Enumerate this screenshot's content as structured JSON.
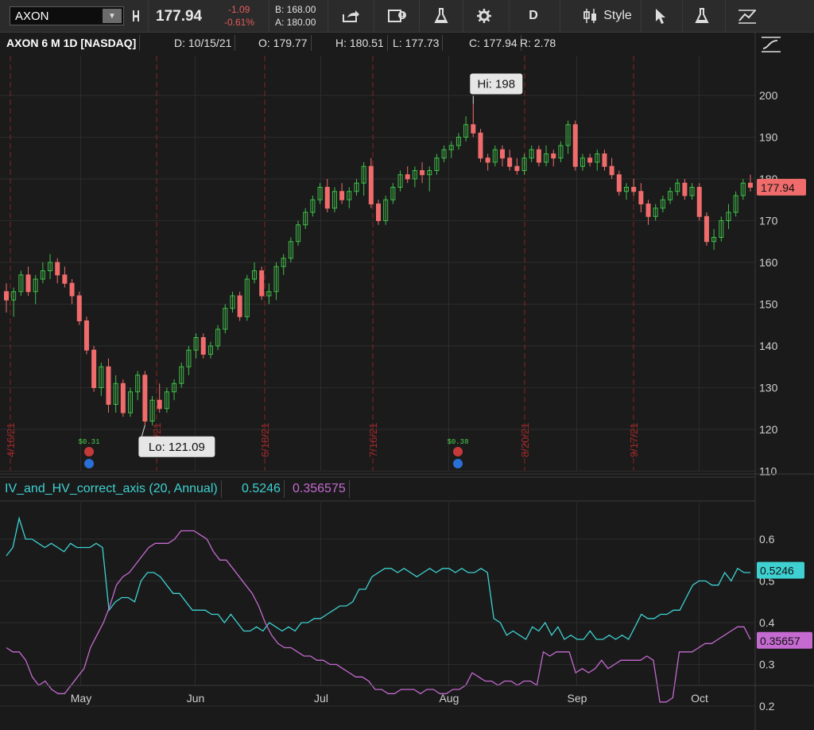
{
  "toolbar": {
    "symbol": "AXON",
    "last_price": "177.94",
    "change_abs": "-1.09",
    "change_pct": "-0.61%",
    "bid": "B: 168.00",
    "ask": "A: 180.00",
    "timeframe_label": "D",
    "style_label": "Style"
  },
  "header": {
    "title": "AXON 6 M 1D [NASDAQ]",
    "date": "D: 10/15/21",
    "open": "O: 179.77",
    "high": "H: 180.51",
    "low": "L: 177.73",
    "close": "C: 177.94",
    "range": "R: 2.78"
  },
  "price_axis": {
    "ticks": [
      "200",
      "190",
      "180",
      "170",
      "160",
      "150",
      "140",
      "130",
      "120",
      "110"
    ],
    "current_label": "177.94"
  },
  "annotations": {
    "high_label": "Hi: 198",
    "low_label": "Lo: 121.09",
    "dividend_1": "$0.31",
    "dividend_2": "$0.38"
  },
  "expiry_lines": [
    "4/16/21",
    "5/21/21",
    "6/18/21",
    "7/16/21",
    "8/20/21",
    "9/17/21"
  ],
  "study": {
    "name": "IV_and_HV_correct_axis (20, Annual)",
    "iv_value": "0.5246",
    "hv_value": "0.356575",
    "iv_axis_label": "0.5246",
    "hv_axis_label": "0.35657",
    "ticks": [
      "0.6",
      "0.5",
      "0.4",
      "0.3",
      "0.2"
    ]
  },
  "time_axis": {
    "months": [
      "May",
      "Jun",
      "Jul",
      "Aug",
      "Sep",
      "Oct"
    ]
  },
  "colors": {
    "up": "#3fbf4a",
    "down": "#f06c6c",
    "iv": "#3fd1d1",
    "hv": "#c46ad0",
    "grid": "#2c2c2c",
    "expiry": "#8a2222"
  },
  "chart_data": [
    {
      "type": "candlestick",
      "title": "AXON 6 M 1D [NASDAQ]",
      "ylim": [
        110,
        205
      ],
      "candles": [
        [
          153,
          155,
          148,
          151
        ],
        [
          151,
          154,
          147,
          153
        ],
        [
          153,
          158,
          152,
          157
        ],
        [
          157,
          159,
          152,
          153
        ],
        [
          153,
          157,
          150,
          156
        ],
        [
          156,
          160,
          155,
          158
        ],
        [
          158,
          162,
          156,
          160
        ],
        [
          160,
          161,
          155,
          157
        ],
        [
          157,
          159,
          154,
          155
        ],
        [
          155,
          156,
          150,
          152
        ],
        [
          152,
          153,
          145,
          146
        ],
        [
          146,
          147,
          138,
          139
        ],
        [
          139,
          140,
          129,
          130
        ],
        [
          130,
          136,
          128,
          135
        ],
        [
          135,
          137,
          124,
          126
        ],
        [
          126,
          133,
          124,
          131
        ],
        [
          131,
          132,
          123,
          124
        ],
        [
          124,
          130,
          123,
          129
        ],
        [
          129,
          134,
          127,
          133
        ],
        [
          133,
          134,
          121,
          122
        ],
        [
          122,
          128,
          121,
          127
        ],
        [
          127,
          131,
          124,
          125
        ],
        [
          125,
          130,
          124,
          129
        ],
        [
          129,
          132,
          127,
          131
        ],
        [
          131,
          136,
          130,
          135
        ],
        [
          135,
          140,
          133,
          139
        ],
        [
          139,
          143,
          137,
          142
        ],
        [
          142,
          143,
          137,
          138
        ],
        [
          138,
          141,
          137,
          140
        ],
        [
          140,
          145,
          139,
          144
        ],
        [
          144,
          150,
          143,
          149
        ],
        [
          149,
          153,
          148,
          152
        ],
        [
          152,
          153,
          146,
          147
        ],
        [
          147,
          157,
          146,
          156
        ],
        [
          156,
          160,
          155,
          158
        ],
        [
          158,
          159,
          151,
          152
        ],
        [
          152,
          155,
          150,
          153
        ],
        [
          153,
          160,
          151,
          159
        ],
        [
          159,
          162,
          157,
          161
        ],
        [
          161,
          166,
          160,
          165
        ],
        [
          165,
          170,
          164,
          169
        ],
        [
          169,
          173,
          168,
          172
        ],
        [
          172,
          176,
          171,
          175
        ],
        [
          175,
          179,
          174,
          178
        ],
        [
          178,
          180,
          172,
          173
        ],
        [
          173,
          178,
          172,
          177
        ],
        [
          177,
          179,
          174,
          175
        ],
        [
          175,
          178,
          173,
          177
        ],
        [
          177,
          180,
          176,
          179
        ],
        [
          179,
          184,
          176,
          183
        ],
        [
          183,
          185,
          173,
          174
        ],
        [
          174,
          175,
          169,
          170
        ],
        [
          170,
          176,
          169,
          175
        ],
        [
          175,
          179,
          174,
          178
        ],
        [
          178,
          182,
          177,
          181
        ],
        [
          181,
          183,
          179,
          180
        ],
        [
          180,
          183,
          178,
          182
        ],
        [
          182,
          184,
          179,
          181
        ],
        [
          181,
          183,
          177,
          182
        ],
        [
          182,
          186,
          181,
          185
        ],
        [
          185,
          188,
          184,
          187
        ],
        [
          187,
          189,
          185,
          188
        ],
        [
          188,
          191,
          187,
          190
        ],
        [
          190,
          195,
          189,
          193
        ],
        [
          193,
          198,
          190,
          191
        ],
        [
          191,
          192,
          184,
          185
        ],
        [
          185,
          186,
          182,
          184
        ],
        [
          184,
          188,
          183,
          187
        ],
        [
          187,
          188,
          183,
          185
        ],
        [
          185,
          187,
          182,
          183
        ],
        [
          183,
          185,
          181,
          182
        ],
        [
          182,
          186,
          181,
          185
        ],
        [
          185,
          188,
          184,
          187
        ],
        [
          187,
          188,
          183,
          184
        ],
        [
          184,
          188,
          183,
          186
        ],
        [
          186,
          187,
          183,
          185
        ],
        [
          185,
          189,
          184,
          188
        ],
        [
          188,
          194,
          186,
          193
        ],
        [
          193,
          194,
          182,
          183
        ],
        [
          183,
          186,
          182,
          185
        ],
        [
          185,
          186,
          183,
          184
        ],
        [
          184,
          187,
          182,
          186
        ],
        [
          186,
          187,
          182,
          183
        ],
        [
          183,
          185,
          180,
          181
        ],
        [
          181,
          182,
          176,
          177
        ],
        [
          177,
          179,
          175,
          178
        ],
        [
          178,
          180,
          176,
          177
        ],
        [
          177,
          179,
          172,
          174
        ],
        [
          174,
          175,
          169,
          171
        ],
        [
          171,
          174,
          170,
          173
        ],
        [
          173,
          176,
          172,
          175
        ],
        [
          175,
          178,
          174,
          177
        ],
        [
          177,
          180,
          176,
          179
        ],
        [
          179,
          180,
          175,
          176
        ],
        [
          176,
          179,
          175,
          178
        ],
        [
          178,
          179,
          170,
          171
        ],
        [
          171,
          172,
          164,
          165
        ],
        [
          165,
          168,
          163,
          166
        ],
        [
          166,
          171,
          165,
          170
        ],
        [
          170,
          174,
          168,
          172
        ],
        [
          172,
          177,
          171,
          176
        ],
        [
          176,
          180,
          175,
          179
        ],
        [
          179,
          181,
          177,
          178
        ]
      ]
    },
    {
      "type": "line",
      "title": "IV_and_HV_correct_axis (20, Annual)",
      "ylim": [
        0.2,
        0.65
      ],
      "series": [
        {
          "name": "IV",
          "values": [
            0.56,
            0.58,
            0.65,
            0.6,
            0.6,
            0.59,
            0.58,
            0.59,
            0.58,
            0.57,
            0.59,
            0.58,
            0.58,
            0.58,
            0.59,
            0.58,
            0.43,
            0.45,
            0.46,
            0.46,
            0.45,
            0.5,
            0.52,
            0.52,
            0.51,
            0.49,
            0.47,
            0.47,
            0.45,
            0.43,
            0.43,
            0.43,
            0.42,
            0.42,
            0.4,
            0.42,
            0.4,
            0.38,
            0.38,
            0.39,
            0.38,
            0.4,
            0.39,
            0.38,
            0.39,
            0.38,
            0.4,
            0.4,
            0.41,
            0.41,
            0.42,
            0.43,
            0.44,
            0.44,
            0.45,
            0.48,
            0.48,
            0.51,
            0.52,
            0.53,
            0.53,
            0.52,
            0.53,
            0.52,
            0.51,
            0.52,
            0.53,
            0.52,
            0.53,
            0.53,
            0.52,
            0.53,
            0.52,
            0.52,
            0.53,
            0.52,
            0.41,
            0.4,
            0.37,
            0.38,
            0.37,
            0.36,
            0.39,
            0.38,
            0.4,
            0.37,
            0.39,
            0.36,
            0.37,
            0.36,
            0.36,
            0.38,
            0.36,
            0.36,
            0.37,
            0.36,
            0.37,
            0.36,
            0.39,
            0.42,
            0.41,
            0.41,
            0.42,
            0.42,
            0.43,
            0.43,
            0.46,
            0.49,
            0.5,
            0.5,
            0.49,
            0.49,
            0.52,
            0.5,
            0.53,
            0.52,
            0.52
          ]
        },
        {
          "name": "HV",
          "values": [
            0.34,
            0.33,
            0.33,
            0.31,
            0.27,
            0.25,
            0.26,
            0.24,
            0.23,
            0.23,
            0.25,
            0.27,
            0.29,
            0.34,
            0.37,
            0.4,
            0.44,
            0.49,
            0.51,
            0.52,
            0.54,
            0.56,
            0.58,
            0.59,
            0.59,
            0.59,
            0.6,
            0.62,
            0.62,
            0.62,
            0.61,
            0.6,
            0.57,
            0.55,
            0.55,
            0.53,
            0.51,
            0.49,
            0.47,
            0.44,
            0.4,
            0.37,
            0.35,
            0.34,
            0.34,
            0.33,
            0.32,
            0.32,
            0.31,
            0.31,
            0.3,
            0.3,
            0.29,
            0.28,
            0.27,
            0.27,
            0.26,
            0.24,
            0.24,
            0.23,
            0.23,
            0.24,
            0.24,
            0.24,
            0.23,
            0.24,
            0.24,
            0.23,
            0.23,
            0.24,
            0.24,
            0.25,
            0.28,
            0.27,
            0.26,
            0.26,
            0.25,
            0.26,
            0.26,
            0.25,
            0.26,
            0.26,
            0.25,
            0.33,
            0.32,
            0.33,
            0.33,
            0.33,
            0.28,
            0.29,
            0.28,
            0.29,
            0.31,
            0.29,
            0.3,
            0.31,
            0.31,
            0.31,
            0.31,
            0.32,
            0.31,
            0.21,
            0.21,
            0.22,
            0.33,
            0.33,
            0.33,
            0.34,
            0.35,
            0.35,
            0.36,
            0.37,
            0.38,
            0.39,
            0.39,
            0.36
          ]
        }
      ]
    }
  ]
}
